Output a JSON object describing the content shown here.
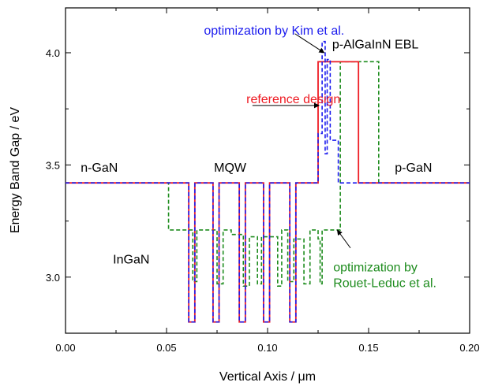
{
  "chart_data": {
    "type": "line",
    "title": "",
    "xlabel": "Vertical Axis / μm",
    "ylabel": "Energy Band Gap / eV",
    "xlim": [
      0.0,
      0.2
    ],
    "ylim": [
      2.75,
      4.2
    ],
    "x_ticks": [
      0.0,
      0.05,
      0.1,
      0.15,
      0.2
    ],
    "x_tick_labels": [
      "0.00",
      "0.05",
      "0.10",
      "0.15",
      "0.20"
    ],
    "y_ticks": [
      3.0,
      3.5,
      4.0
    ],
    "y_tick_labels": [
      "3.0",
      "3.5",
      "4.0"
    ],
    "grid": false,
    "series": [
      {
        "name": "reference design",
        "color": "#ee1c24",
        "dash": "solid",
        "points": [
          [
            0.0,
            3.42
          ],
          [
            0.061,
            3.42
          ],
          [
            0.061,
            2.8
          ],
          [
            0.064,
            2.8
          ],
          [
            0.064,
            3.42
          ],
          [
            0.073,
            3.42
          ],
          [
            0.073,
            2.8
          ],
          [
            0.076,
            2.8
          ],
          [
            0.076,
            3.42
          ],
          [
            0.086,
            3.42
          ],
          [
            0.086,
            2.8
          ],
          [
            0.089,
            2.8
          ],
          [
            0.089,
            3.42
          ],
          [
            0.098,
            3.42
          ],
          [
            0.098,
            2.8
          ],
          [
            0.101,
            2.8
          ],
          [
            0.101,
            3.42
          ],
          [
            0.111,
            3.42
          ],
          [
            0.111,
            2.8
          ],
          [
            0.114,
            2.8
          ],
          [
            0.114,
            3.42
          ],
          [
            0.125,
            3.42
          ],
          [
            0.125,
            3.96
          ],
          [
            0.145,
            3.96
          ],
          [
            0.145,
            3.42
          ],
          [
            0.2,
            3.42
          ]
        ]
      },
      {
        "name": "optimization by Kim et al.",
        "color": "#1a1aee",
        "dash": "dashed",
        "points": [
          [
            0.0,
            3.42
          ],
          [
            0.061,
            3.42
          ],
          [
            0.061,
            2.8
          ],
          [
            0.064,
            2.8
          ],
          [
            0.064,
            3.42
          ],
          [
            0.073,
            3.42
          ],
          [
            0.073,
            2.8
          ],
          [
            0.076,
            2.8
          ],
          [
            0.076,
            3.42
          ],
          [
            0.086,
            3.42
          ],
          [
            0.086,
            2.8
          ],
          [
            0.089,
            2.8
          ],
          [
            0.089,
            3.42
          ],
          [
            0.098,
            3.42
          ],
          [
            0.098,
            2.8
          ],
          [
            0.101,
            2.8
          ],
          [
            0.101,
            3.42
          ],
          [
            0.111,
            3.42
          ],
          [
            0.111,
            2.8
          ],
          [
            0.114,
            2.8
          ],
          [
            0.114,
            3.42
          ],
          [
            0.125,
            3.42
          ],
          [
            0.125,
            3.64
          ],
          [
            0.127,
            3.64
          ],
          [
            0.127,
            4.05
          ],
          [
            0.1285,
            4.05
          ],
          [
            0.1285,
            3.55
          ],
          [
            0.1295,
            3.55
          ],
          [
            0.1295,
            3.97
          ],
          [
            0.131,
            3.97
          ],
          [
            0.131,
            3.61
          ],
          [
            0.135,
            3.61
          ],
          [
            0.135,
            3.42
          ],
          [
            0.2,
            3.42
          ]
        ]
      },
      {
        "name": "optimization by Rouet-Leduc et al.",
        "color": "#1e8c1e",
        "dash": "dashed",
        "points": [
          [
            0.0,
            3.42
          ],
          [
            0.051,
            3.42
          ],
          [
            0.051,
            3.21
          ],
          [
            0.063,
            3.21
          ],
          [
            0.063,
            2.98
          ],
          [
            0.065,
            2.98
          ],
          [
            0.065,
            3.21
          ],
          [
            0.075,
            3.21
          ],
          [
            0.075,
            2.97
          ],
          [
            0.078,
            2.97
          ],
          [
            0.078,
            3.21
          ],
          [
            0.082,
            3.21
          ],
          [
            0.082,
            3.19
          ],
          [
            0.088,
            3.19
          ],
          [
            0.088,
            2.96
          ],
          [
            0.091,
            2.96
          ],
          [
            0.091,
            3.18
          ],
          [
            0.095,
            3.18
          ],
          [
            0.095,
            2.97
          ],
          [
            0.097,
            2.97
          ],
          [
            0.097,
            3.18
          ],
          [
            0.105,
            3.18
          ],
          [
            0.105,
            2.96
          ],
          [
            0.107,
            2.96
          ],
          [
            0.107,
            3.21
          ],
          [
            0.11,
            3.21
          ],
          [
            0.11,
            2.98
          ],
          [
            0.113,
            2.98
          ],
          [
            0.113,
            3.17
          ],
          [
            0.118,
            3.17
          ],
          [
            0.118,
            2.97
          ],
          [
            0.121,
            2.97
          ],
          [
            0.121,
            3.21
          ],
          [
            0.125,
            3.21
          ],
          [
            0.125,
            3.17
          ],
          [
            0.126,
            3.17
          ],
          [
            0.126,
            2.97
          ],
          [
            0.127,
            2.97
          ],
          [
            0.127,
            3.21
          ],
          [
            0.136,
            3.21
          ],
          [
            0.136,
            3.96
          ],
          [
            0.155,
            3.96
          ],
          [
            0.155,
            3.42
          ],
          [
            0.2,
            3.42
          ]
        ]
      }
    ],
    "annotations": [
      {
        "text": "optimization by Kim et al.",
        "color": "#1a1aee",
        "x": 0.0685,
        "y": 4.08,
        "anchor": "start",
        "arrow_to": [
          0.128,
          4.0
        ],
        "arrow_from": [
          0.1135,
          4.085
        ]
      },
      {
        "text": "p-AlGaInN EBL",
        "color": "#000000",
        "x": 0.132,
        "y": 4.02,
        "anchor": "start"
      },
      {
        "text": "reference design",
        "color": "#ee1c24",
        "x": 0.0895,
        "y": 3.775,
        "anchor": "start",
        "arrow_to": [
          0.1255,
          3.765
        ],
        "arrow_from": [
          0.0925,
          3.765
        ]
      },
      {
        "text": "n-GaN",
        "color": "#000000",
        "x": 0.0075,
        "y": 3.47,
        "anchor": "start"
      },
      {
        "text": "MQW",
        "color": "#000000",
        "x": 0.0735,
        "y": 3.47,
        "anchor": "start"
      },
      {
        "text": "p-GaN",
        "color": "#000000",
        "x": 0.163,
        "y": 3.47,
        "anchor": "start"
      },
      {
        "text": "InGaN",
        "color": "#000000",
        "x": 0.0235,
        "y": 3.06,
        "anchor": "start"
      },
      {
        "text": "optimization by",
        "color": "#1e8c1e",
        "x": 0.1325,
        "y": 3.025,
        "anchor": "start"
      },
      {
        "text": "Rouet-Leduc et al.",
        "color": "#1e8c1e",
        "x": 0.1325,
        "y": 2.955,
        "anchor": "start",
        "arrow_to": [
          0.1345,
          3.21
        ],
        "arrow_from": [
          0.141,
          3.13
        ]
      }
    ]
  }
}
